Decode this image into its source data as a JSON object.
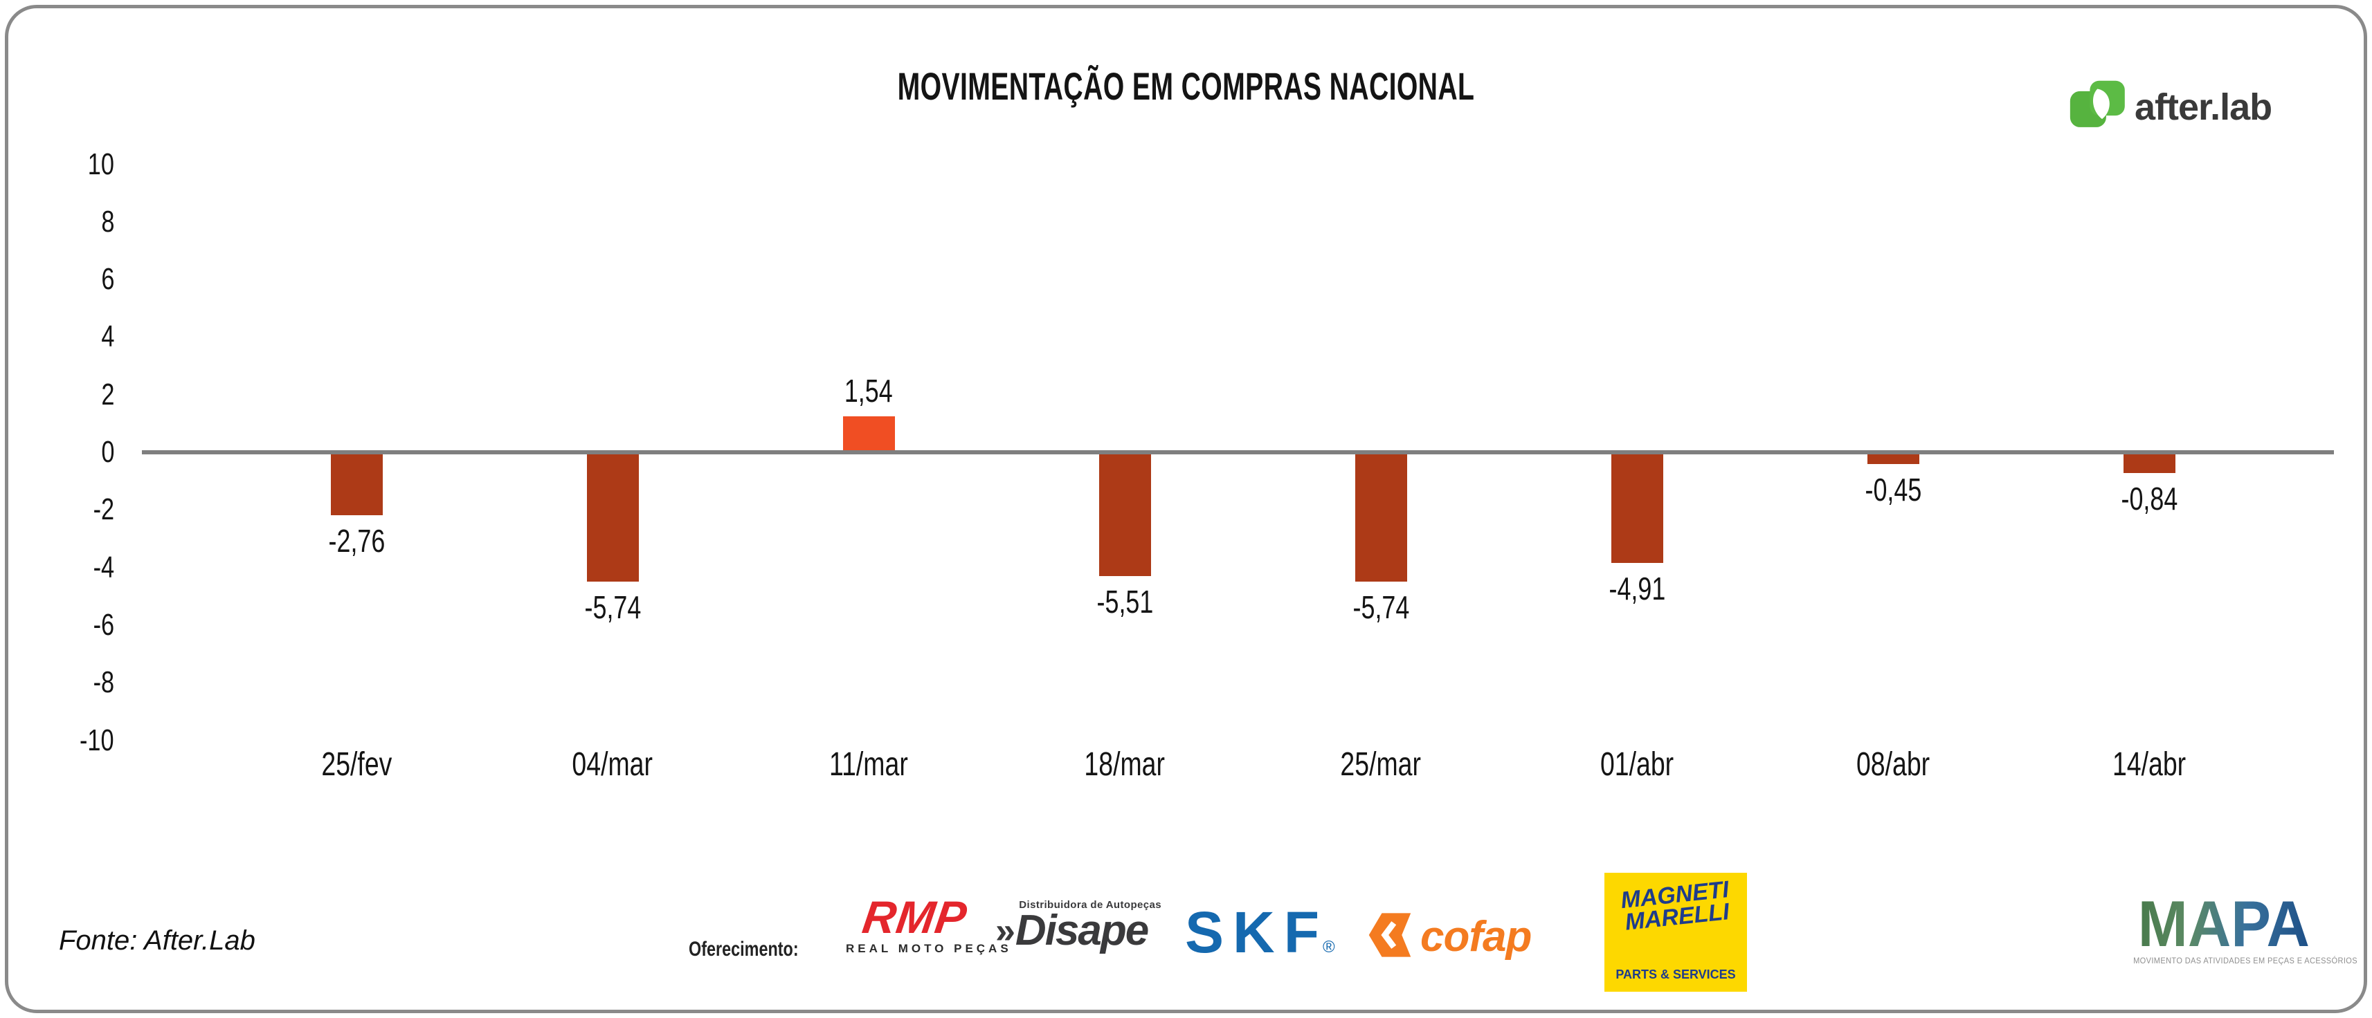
{
  "header": {
    "title": "MOVIMENTAÇÃO EM COMPRAS NACIONAL",
    "brand": {
      "name": "after.lab",
      "icon": "afterlab-leaf-icon",
      "green": "#5cbb45",
      "text_color": "#3a3a3a"
    }
  },
  "chart_data": {
    "type": "bar",
    "title": "MOVIMENTAÇÃO EM COMPRAS NACIONAL",
    "categories": [
      "25/fev",
      "04/mar",
      "11/mar",
      "18/mar",
      "25/mar",
      "01/abr",
      "08/abr",
      "14/abr"
    ],
    "values": [
      -2.76,
      -5.74,
      1.54,
      -5.51,
      -5.74,
      -4.91,
      -0.45,
      -0.84
    ],
    "value_labels": [
      "-2,76",
      "-5,74",
      "1,54",
      "-5,51",
      "-5,74",
      "-4,91",
      "-0,45",
      "-0,84"
    ],
    "yticks": [
      10,
      8,
      6,
      4,
      2,
      0,
      -2,
      -4,
      -6,
      -8,
      -10
    ],
    "ylim": [
      -10,
      10
    ],
    "grid": false,
    "legend_position": "none",
    "colors": {
      "bar_negative": "#ad3a17",
      "bar_positive": "#f04e23",
      "zero_line": "#7f7f7f"
    }
  },
  "footer": {
    "source": "Fonte: After.Lab",
    "offering_label": "Oferecimento:",
    "sponsors": {
      "rmp": {
        "main": "RMP",
        "sub": "REAL MOTO PEÇAS",
        "color": "#e4262c"
      },
      "disape": {
        "tagline": "Distribuidora de Autopeças",
        "chevron": "»",
        "main": "Disape",
        "color": "#3a3a3c"
      },
      "skf": {
        "main": "SKF",
        "registered": "®",
        "color": "#1569af"
      },
      "cofap": {
        "main": "cofap",
        "color": "#f47b20"
      },
      "magneti_marelli": {
        "line1": "MAGNETI",
        "line2": "MARELLI",
        "sub": "PARTS & SERVICES",
        "bg": "#fdd800",
        "text_color": "#1e3c8c"
      },
      "mapa": {
        "main": "MAPA",
        "sub": "MOVIMENTO DAS ATIVIDADES EM PEÇAS E ACESSÓRIOS"
      }
    }
  }
}
